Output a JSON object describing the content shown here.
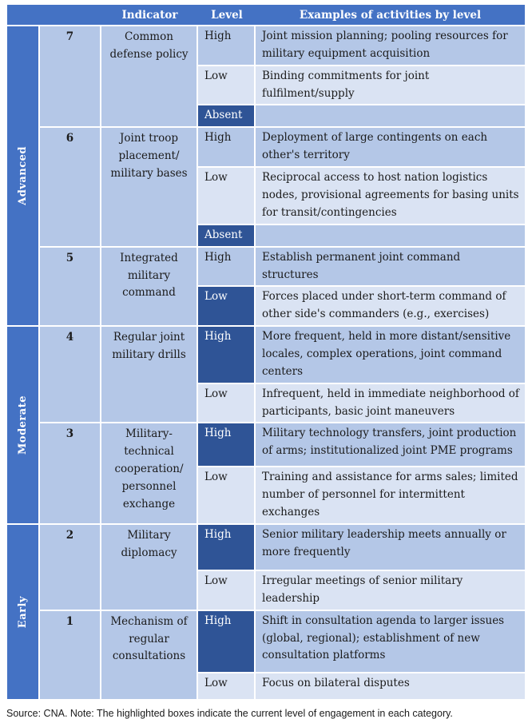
{
  "header": {
    "indicator": "Indicator",
    "level": "Level",
    "examples": "Examples of activities by level"
  },
  "sections": [
    {
      "name": "Advanced",
      "indicators": [
        {
          "number": "7",
          "name": "Common defense policy",
          "levels": [
            {
              "label": "High",
              "highlighted": false,
              "example": "Joint mission planning; pooling resources for military equipment acquisition"
            },
            {
              "label": "Low",
              "highlighted": false,
              "example": "Binding commitments for joint fulfilment/supply"
            },
            {
              "label": "Absent",
              "highlighted": true,
              "example": ""
            }
          ]
        },
        {
          "number": "6",
          "name": "Joint troop placement/ military bases",
          "levels": [
            {
              "label": "High",
              "highlighted": false,
              "example": "Deployment of large contingents on each other's territory"
            },
            {
              "label": "Low",
              "highlighted": false,
              "example": "Reciprocal access to host nation logistics nodes, provisional agreements for basing units for transit/contingencies"
            },
            {
              "label": "Absent",
              "highlighted": true,
              "example": ""
            }
          ]
        },
        {
          "number": "5",
          "name": "Integrated military command",
          "levels": [
            {
              "label": "High",
              "highlighted": false,
              "example": "Establish permanent joint command structures"
            },
            {
              "label": "Low",
              "highlighted": true,
              "example": "Forces placed under short-term command of other side's commanders (e.g., exercises)"
            }
          ]
        }
      ]
    },
    {
      "name": "Moderate",
      "indicators": [
        {
          "number": "4",
          "name": "Regular joint military drills",
          "levels": [
            {
              "label": "High",
              "highlighted": true,
              "example": "More frequent, held in more distant/sensitive locales, complex operations, joint command centers"
            },
            {
              "label": "Low",
              "highlighted": false,
              "example": "Infrequent, held in immediate neighborhood of participants, basic joint maneuvers"
            }
          ]
        },
        {
          "number": "3",
          "name": "Military-technical cooperation/ personnel exchange",
          "levels": [
            {
              "label": "High",
              "highlighted": true,
              "example": "Military technology transfers, joint production of arms; institutionalized joint PME programs"
            },
            {
              "label": "Low",
              "highlighted": false,
              "example": "Training and assistance for arms sales; limited number of personnel for intermittent exchanges"
            }
          ]
        }
      ]
    },
    {
      "name": "Early",
      "indicators": [
        {
          "number": "2",
          "name": "Military diplomacy",
          "levels": [
            {
              "label": "High",
              "highlighted": true,
              "example": "Senior military leadership meets annually or more frequently"
            },
            {
              "label": "Low",
              "highlighted": false,
              "example": "Irregular meetings of senior military leadership"
            }
          ]
        },
        {
          "number": "1",
          "name": "Mechanism of regular consultations",
          "levels": [
            {
              "label": "High",
              "highlighted": true,
              "example": "Shift in consultation agenda to larger issues (global, regional); establishment of new consultation platforms"
            },
            {
              "label": "Low",
              "highlighted": false,
              "example": "Focus on bilateral disputes"
            }
          ]
        }
      ]
    }
  ],
  "footer": "Source: CNA. Note: The highlighted boxes indicate the current level of engagement in each category.",
  "colors": {
    "header_blue": "#4472C4",
    "highlight_dark": "#2F5496",
    "light_blue": "#B4C7E7",
    "lighter_blue": "#DAE3F3",
    "text": "#1B1B1B"
  }
}
